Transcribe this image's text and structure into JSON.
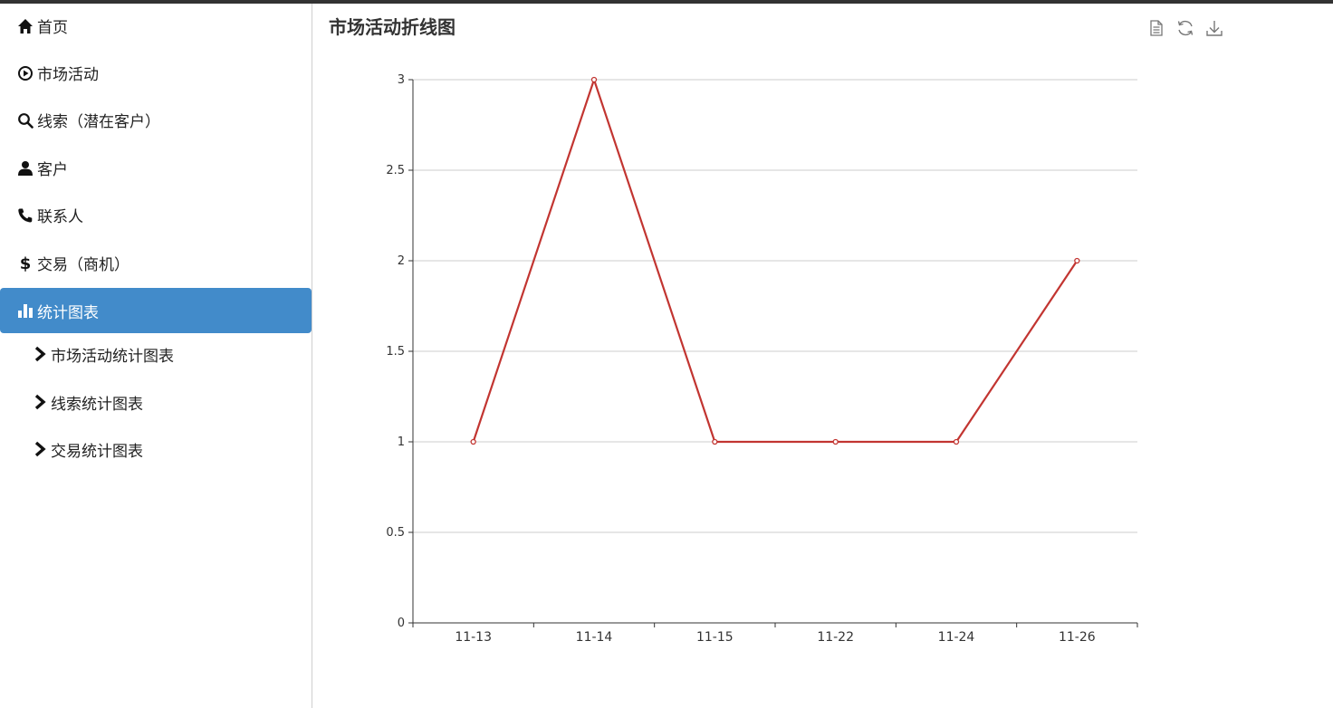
{
  "sidebar": {
    "items": [
      {
        "label": "首页",
        "icon": "home-icon"
      },
      {
        "label": "市场活动",
        "icon": "play-circle-icon"
      },
      {
        "label": "线索（潜在客户）",
        "icon": "search-icon"
      },
      {
        "label": "客户",
        "icon": "user-icon"
      },
      {
        "label": "联系人",
        "icon": "phone-icon"
      },
      {
        "label": "交易（商机）",
        "icon": "dollar-icon"
      },
      {
        "label": "统计图表",
        "icon": "bar-chart-icon",
        "active": true
      }
    ],
    "sub_items": [
      {
        "label": "市场活动统计图表",
        "icon": "chevron-right-icon"
      },
      {
        "label": "线索统计图表",
        "icon": "chevron-right-icon"
      },
      {
        "label": "交易统计图表",
        "icon": "chevron-right-icon"
      }
    ],
    "active_color": "#428bca"
  },
  "main": {
    "title": "市场活动折线图",
    "toolbox": [
      "data-view-icon",
      "restore-icon",
      "save-image-icon"
    ]
  },
  "chart_data": {
    "type": "line",
    "title": "市场活动折线图",
    "categories": [
      "11-13",
      "11-14",
      "11-15",
      "11-22",
      "11-24",
      "11-26"
    ],
    "series": [
      {
        "values": [
          1,
          3,
          1,
          1,
          1,
          2
        ],
        "color": "#c23531"
      }
    ],
    "ylim": [
      0,
      3
    ],
    "yticks": [
      "0",
      "0.5",
      "1",
      "1.5",
      "2",
      "2.5",
      "3"
    ],
    "grid": true
  }
}
